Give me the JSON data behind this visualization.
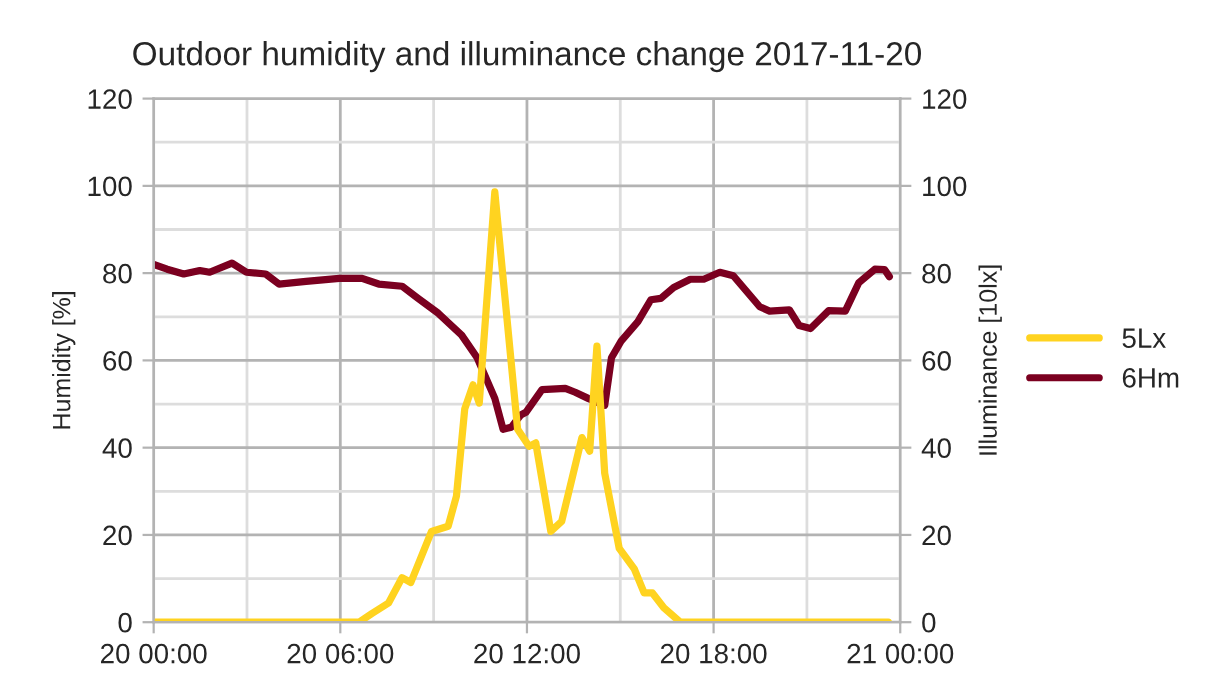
{
  "chart_data": {
    "type": "line",
    "title": "Outdoor humidity and illuminance change 2017-11-20",
    "ylabel": "Humidity [%]",
    "y2label": "Illuminance [10lx]",
    "xlim": [
      "2017-11-20T00:00",
      "2017-11-21T00:00"
    ],
    "xticks": [
      {
        "value": "2017-11-20T00:00",
        "label": "20 00:00"
      },
      {
        "value": "2017-11-20T03:00",
        "label": null
      },
      {
        "value": "2017-11-20T06:00",
        "label": "20 06:00"
      },
      {
        "value": "2017-11-20T09:00",
        "label": null
      },
      {
        "value": "2017-11-20T12:00",
        "label": "20 12:00"
      },
      {
        "value": "2017-11-20T15:00",
        "label": null
      },
      {
        "value": "2017-11-20T18:00",
        "label": "20 18:00"
      },
      {
        "value": "2017-11-20T21:00",
        "label": null
      },
      {
        "value": "2017-11-21T00:00",
        "label": "21 00:00"
      }
    ],
    "ylim": [
      0,
      120
    ],
    "yticks": [
      0,
      {
        "value": 10,
        "label": null
      },
      20,
      {
        "value": 30,
        "label": null
      },
      40,
      {
        "value": 50,
        "label": null
      },
      60,
      {
        "value": 70,
        "label": null
      },
      80,
      {
        "value": 90,
        "label": null
      },
      100,
      {
        "value": 110,
        "label": null
      },
      120
    ],
    "y2lim": [
      0,
      120
    ],
    "y2ticks": [
      0,
      20,
      40,
      60,
      80,
      100,
      120
    ],
    "grid": true,
    "legend": "right",
    "line_style": "solid",
    "series": [
      {
        "name": "5Lx",
        "color": "#ffd320",
        "axis": "y2",
        "x": [
          "2017-11-20T00:00",
          "2017-11-20T06:36",
          "2017-11-20T07:01",
          "2017-11-20T07:33",
          "2017-11-20T07:59",
          "2017-11-20T08:16",
          "2017-11-20T08:56",
          "2017-11-20T09:28",
          "2017-11-20T09:44",
          "2017-11-20T10:00",
          "2017-11-20T10:16",
          "2017-11-20T10:28",
          "2017-11-20T10:58",
          "2017-11-20T11:23",
          "2017-11-20T11:42",
          "2017-11-20T12:04",
          "2017-11-20T12:17",
          "2017-11-20T12:46",
          "2017-11-20T13:07",
          "2017-11-20T13:46",
          "2017-11-20T14:01",
          "2017-11-20T14:15",
          "2017-11-20T14:30",
          "2017-11-20T14:58",
          "2017-11-20T15:27",
          "2017-11-20T15:46",
          "2017-11-20T16:02",
          "2017-11-20T16:24",
          "2017-11-20T16:56",
          "2017-11-20T23:37"
        ],
        "values": [
          0,
          0,
          2,
          4.4,
          10.2,
          9.1,
          20.8,
          22,
          28.9,
          48.9,
          54.4,
          50.2,
          98.6,
          67.7,
          44.2,
          40.3,
          41.1,
          20.8,
          23.1,
          42.3,
          39.2,
          63.3,
          34.1,
          16.9,
          12.2,
          6.7,
          6.7,
          3.3,
          0,
          0
        ]
      },
      {
        "name": "6Hm",
        "color": "#7b0020",
        "x": [
          "2017-11-20T00:00",
          "2017-11-20T00:26",
          "2017-11-20T00:58",
          "2017-11-20T01:29",
          "2017-11-20T01:48",
          "2017-11-20T02:31",
          "2017-11-20T02:59",
          "2017-11-20T03:36",
          "2017-11-20T04:02",
          "2017-11-20T04:54",
          "2017-11-20T05:58",
          "2017-11-20T06:42",
          "2017-11-20T07:14",
          "2017-11-20T07:59",
          "2017-11-20T08:30",
          "2017-11-20T09:09",
          "2017-11-20T09:54",
          "2017-11-20T10:24",
          "2017-11-20T10:58",
          "2017-11-20T11:14",
          "2017-11-20T11:30",
          "2017-11-20T11:48",
          "2017-11-20T11:58",
          "2017-11-20T12:29",
          "2017-11-20T13:14",
          "2017-11-20T13:33",
          "2017-11-20T13:58",
          "2017-11-20T14:30",
          "2017-11-20T14:43",
          "2017-11-20T15:02",
          "2017-11-20T15:34",
          "2017-11-20T15:59",
          "2017-11-20T16:18",
          "2017-11-20T16:43",
          "2017-11-20T17:15",
          "2017-11-20T17:41",
          "2017-11-20T18:12",
          "2017-11-20T18:38",
          "2017-11-20T19:29",
          "2017-11-20T19:48",
          "2017-11-20T20:26",
          "2017-11-20T20:45",
          "2017-11-20T21:07",
          "2017-11-20T21:42",
          "2017-11-20T22:14",
          "2017-11-20T22:40",
          "2017-11-20T23:11",
          "2017-11-20T23:30",
          "2017-11-20T23:39"
        ],
        "values": [
          82,
          80.9,
          79.8,
          80.6,
          80.2,
          82.3,
          80.2,
          79.8,
          77.5,
          78.1,
          78.8,
          78.8,
          77.5,
          77,
          74.2,
          70.8,
          65.8,
          60.6,
          51.3,
          44.2,
          44.7,
          47.5,
          48.1,
          53.3,
          53.6,
          52.7,
          51.3,
          49.7,
          60.6,
          64.5,
          68.9,
          73.9,
          74.2,
          76.7,
          78.6,
          78.6,
          80.2,
          79.4,
          72.3,
          71.3,
          71.6,
          68,
          67.3,
          71.4,
          71.3,
          77.8,
          80.9,
          80.8,
          79.2
        ]
      }
    ]
  }
}
